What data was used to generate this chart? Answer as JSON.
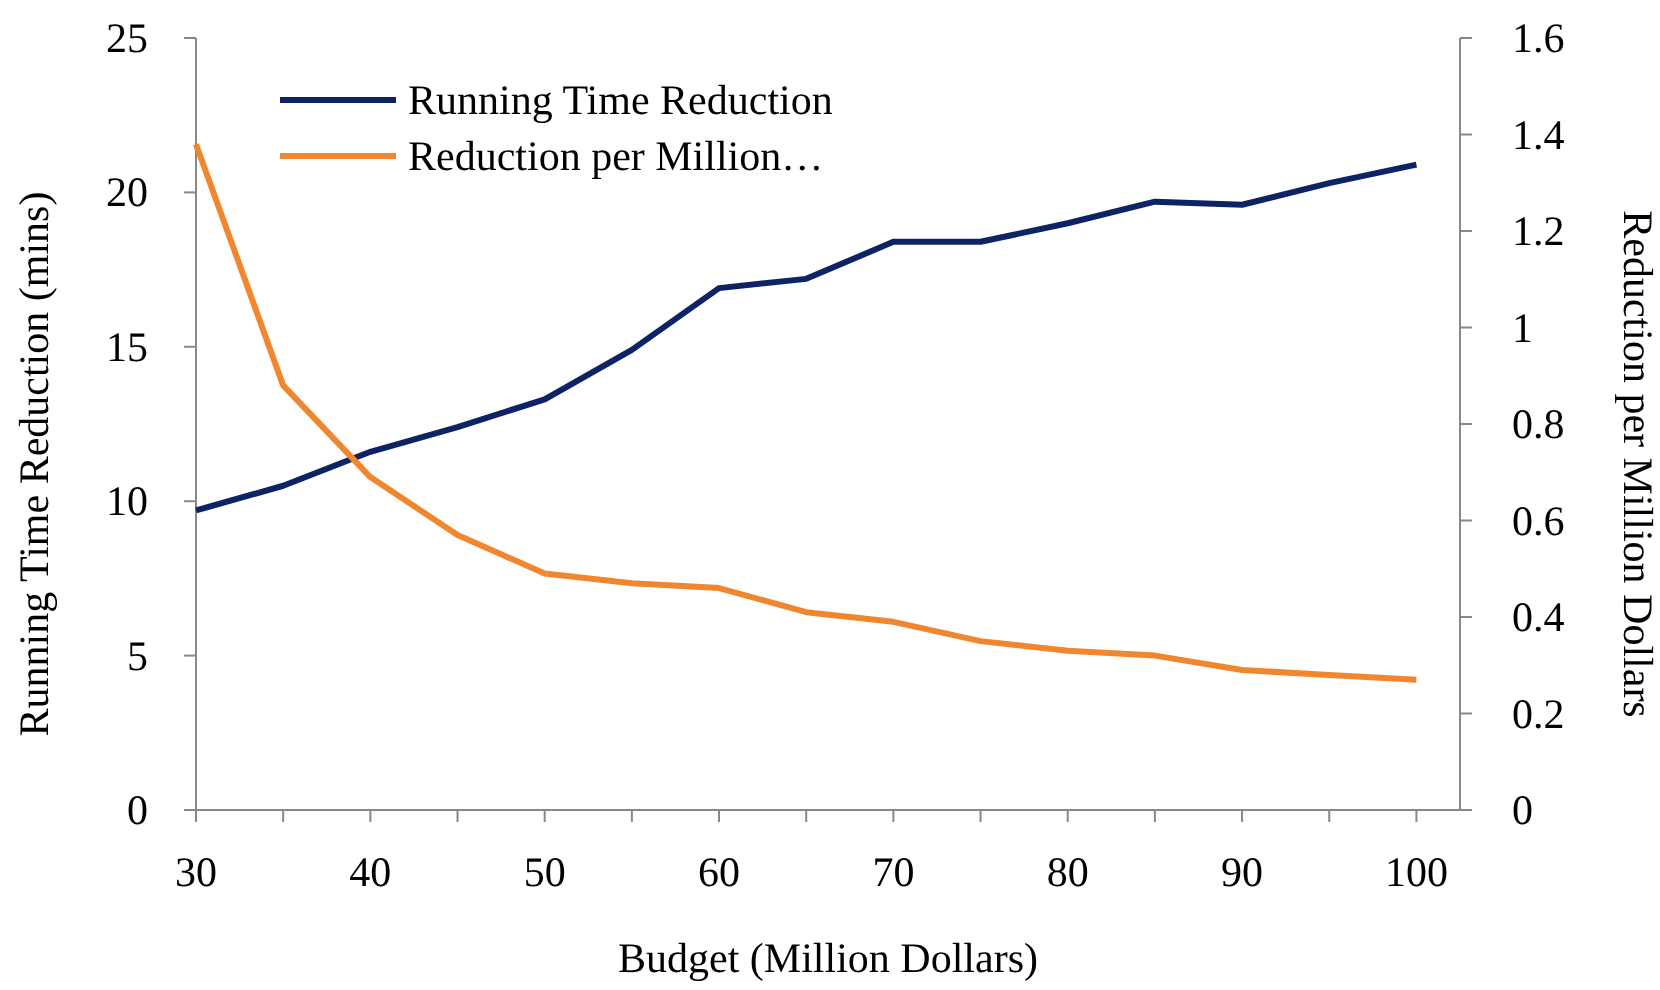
{
  "chart_data": {
    "type": "line",
    "xlabel": "Budget (Million Dollars)",
    "ylabel": "Running Time Reduction (mins)",
    "y2label": "Reduction per Million Dollars",
    "x": [
      30,
      35,
      40,
      45,
      50,
      55,
      60,
      65,
      70,
      75,
      80,
      85,
      90,
      95,
      100
    ],
    "series": [
      {
        "name": "Running Time Reduction",
        "color": "#0e2366",
        "values": [
          9.7,
          10.5,
          11.6,
          12.4,
          13.3,
          14.9,
          16.9,
          17.2,
          18.4,
          18.4,
          19.0,
          19.7,
          19.6,
          20.3,
          20.9
        ]
      },
      {
        "name": "Reduction per Million…",
        "color": "#f0862e",
        "axis": "y2",
        "values": [
          1.38,
          0.88,
          0.69,
          0.57,
          0.49,
          0.47,
          0.46,
          0.41,
          0.39,
          0.35,
          0.33,
          0.32,
          0.29,
          0.28,
          0.27
        ]
      }
    ],
    "xlim": [
      30,
      102.5
    ],
    "xticks": [
      30,
      {
        "value": 35,
        "label": null
      },
      40,
      {
        "value": 45,
        "label": null
      },
      50,
      {
        "value": 55,
        "label": null
      },
      60,
      {
        "value": 65,
        "label": null
      },
      70,
      {
        "value": 75,
        "label": null
      },
      80,
      {
        "value": 85,
        "label": null
      },
      90,
      {
        "value": 95,
        "label": null
      },
      100
    ],
    "ylim": [
      0,
      25
    ],
    "yticks": [
      0,
      5,
      10,
      15,
      20,
      25
    ],
    "y2lim": [
      0,
      1.6
    ],
    "y2ticks": [
      0,
      0.2,
      0.4,
      0.6,
      0.8,
      1,
      1.2,
      1.4,
      1.6
    ],
    "legend": "top left",
    "grid": false,
    "marker": "none",
    "line_style": "solid"
  }
}
